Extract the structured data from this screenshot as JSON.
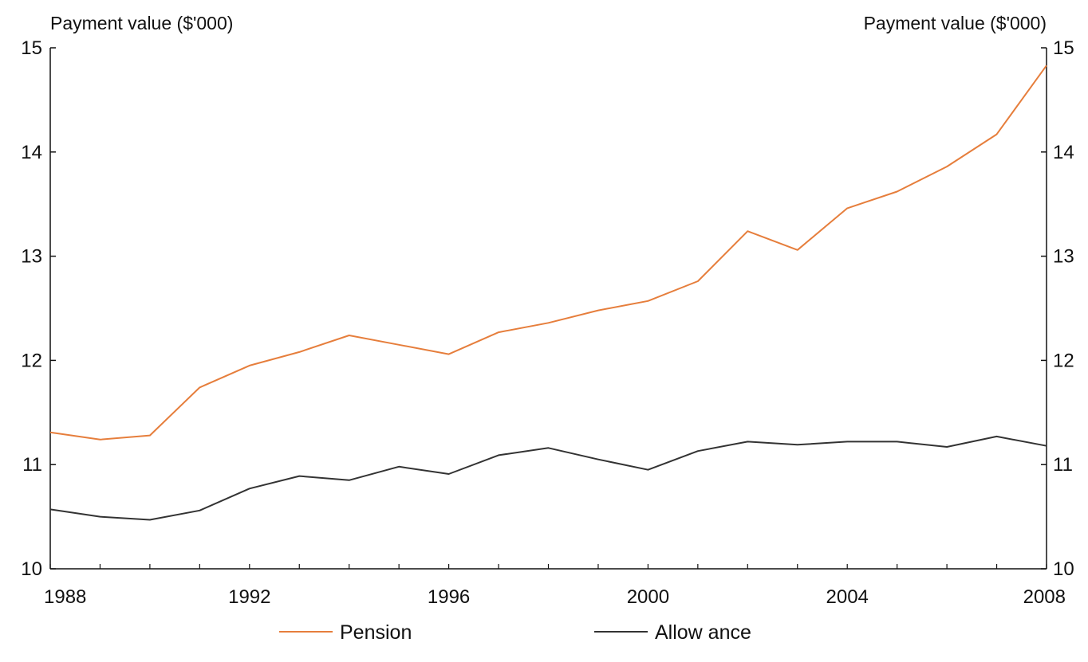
{
  "chart_data": {
    "type": "line",
    "x": [
      1988,
      1989,
      1990,
      1991,
      1992,
      1993,
      1994,
      1995,
      1996,
      1997,
      1998,
      1999,
      2000,
      2001,
      2002,
      2003,
      2004,
      2005,
      2006,
      2007,
      2008
    ],
    "series": [
      {
        "name": "Pension",
        "color": "#e67e3c",
        "values": [
          11.31,
          11.24,
          11.28,
          11.74,
          11.95,
          12.08,
          12.24,
          12.15,
          12.06,
          12.27,
          12.36,
          12.48,
          12.57,
          12.76,
          13.24,
          13.06,
          13.46,
          13.62,
          13.86,
          14.17,
          14.83
        ]
      },
      {
        "name": "Allow ance",
        "color": "#333333",
        "values": [
          10.57,
          10.5,
          10.47,
          10.56,
          10.77,
          10.89,
          10.85,
          10.98,
          10.91,
          11.09,
          11.16,
          11.05,
          10.95,
          11.13,
          11.22,
          11.19,
          11.22,
          11.22,
          11.17,
          11.27,
          11.18
        ]
      }
    ],
    "xlim": [
      1988,
      2008
    ],
    "ylim": [
      10,
      15
    ],
    "x_ticks": [
      "1988",
      "1992",
      "1996",
      "2000",
      "2004",
      "2008"
    ],
    "y_ticks": [
      "10",
      "11",
      "12",
      "13",
      "14",
      "15"
    ],
    "ylabel_left": "Payment value ($'000)",
    "ylabel_right": "Payment value ($'000)",
    "legend_position": "bottom",
    "grid": false,
    "axis_color": "#111111"
  }
}
